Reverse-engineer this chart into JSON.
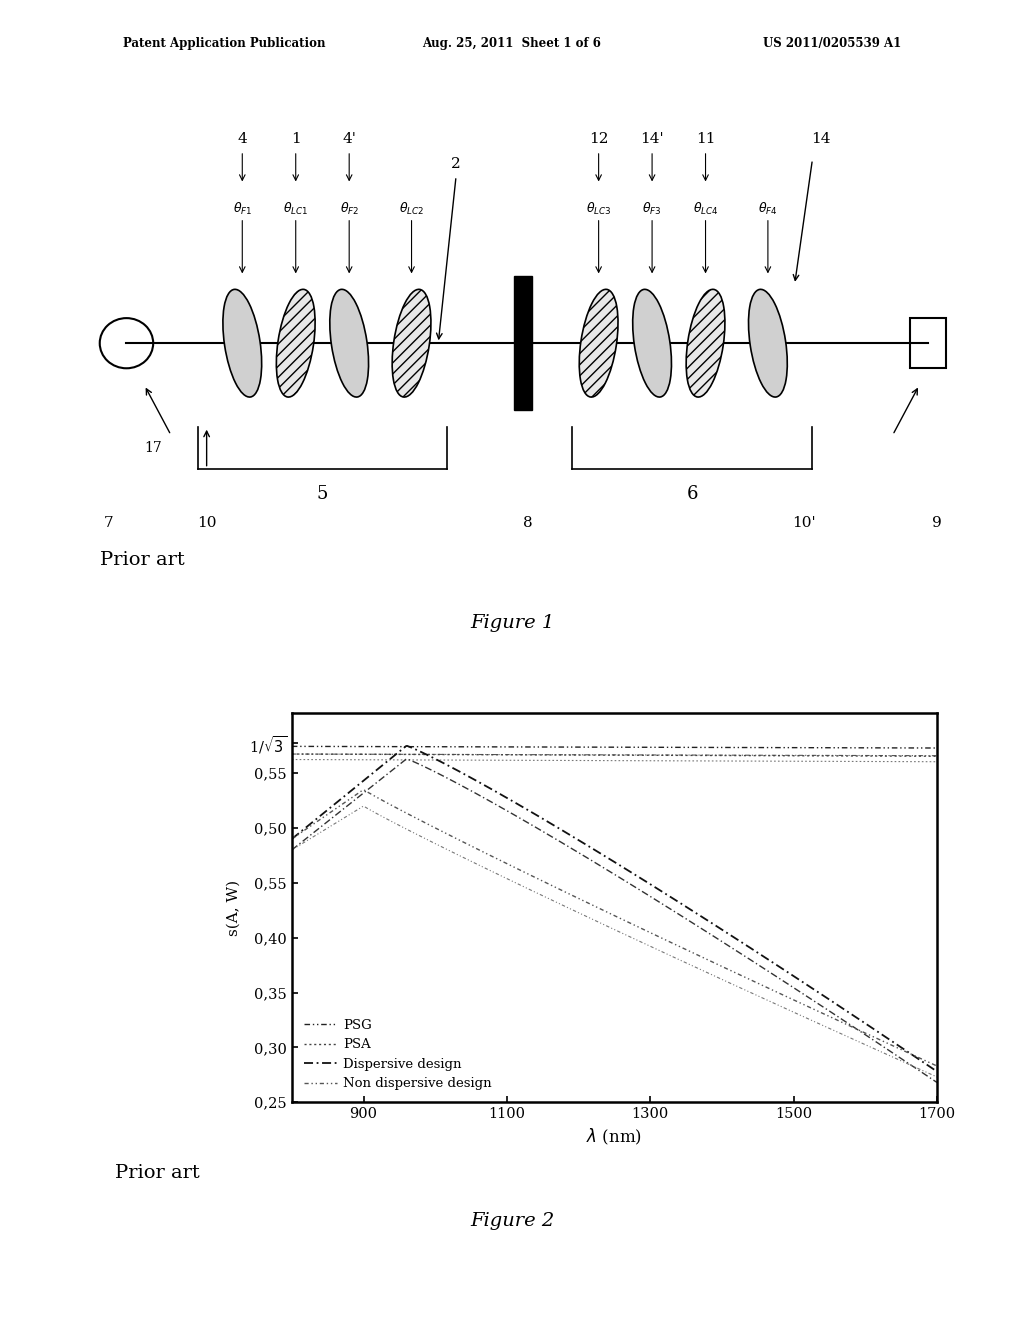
{
  "header_left": "Patent Application Publication",
  "header_center": "Aug. 25, 2011  Sheet 1 of 6",
  "header_right": "US 2011/0205539 A1",
  "fig1_label": "Figure 1",
  "fig2_label": "Figure 2",
  "prior_art_label1": "Prior art",
  "prior_art_label2": "Prior art",
  "graph_ylabel": "s(A, W)",
  "graph_xlabel": "λ (nm)",
  "bg_color": "#ffffff",
  "inv_sqrt3": 0.5774,
  "xmin": 800,
  "xmax": 1700
}
